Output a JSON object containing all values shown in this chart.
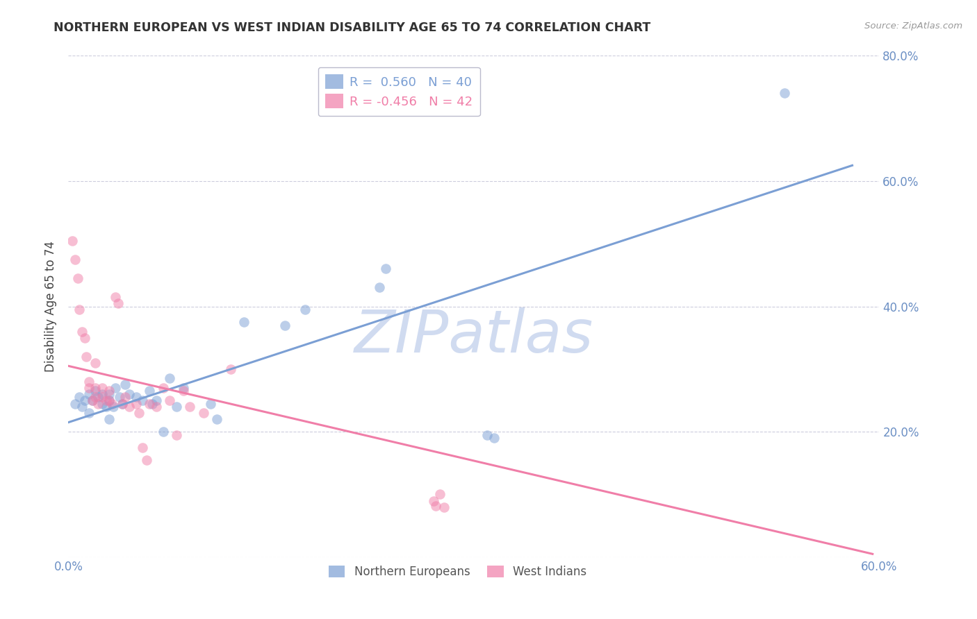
{
  "title": "NORTHERN EUROPEAN VS WEST INDIAN DISABILITY AGE 65 TO 74 CORRELATION CHART",
  "source": "Source: ZipAtlas.com",
  "ylabel": "Disability Age 65 to 74",
  "xlim": [
    0.0,
    0.6
  ],
  "ylim": [
    0.0,
    0.8
  ],
  "xticks": [
    0.0,
    0.6
  ],
  "yticks": [
    0.0,
    0.2,
    0.4,
    0.6,
    0.8
  ],
  "xticklabels": [
    "0.0%",
    "60.0%"
  ],
  "yticklabels": [
    "",
    "20.0%",
    "40.0%",
    "60.0%",
    "80.0%"
  ],
  "legend_entries": [
    {
      "label": "Northern Europeans",
      "R": "0.560",
      "N": "40",
      "color": "#7B9FD4"
    },
    {
      "label": "West Indians",
      "R": "-0.456",
      "N": "42",
      "color": "#F07EA8"
    }
  ],
  "watermark": "ZIPatlas",
  "blue_color": "#7B9FD4",
  "pink_color": "#F07EA8",
  "axis_color": "#6B8FC4",
  "grid_color": "#CCCCDD",
  "title_color": "#333333",
  "blue_scatter": [
    [
      0.005,
      0.245
    ],
    [
      0.008,
      0.255
    ],
    [
      0.01,
      0.24
    ],
    [
      0.012,
      0.25
    ],
    [
      0.015,
      0.26
    ],
    [
      0.015,
      0.23
    ],
    [
      0.018,
      0.25
    ],
    [
      0.02,
      0.265
    ],
    [
      0.022,
      0.255
    ],
    [
      0.025,
      0.245
    ],
    [
      0.025,
      0.26
    ],
    [
      0.028,
      0.24
    ],
    [
      0.03,
      0.26
    ],
    [
      0.03,
      0.25
    ],
    [
      0.03,
      0.22
    ],
    [
      0.033,
      0.24
    ],
    [
      0.035,
      0.27
    ],
    [
      0.038,
      0.255
    ],
    [
      0.04,
      0.245
    ],
    [
      0.042,
      0.275
    ],
    [
      0.045,
      0.26
    ],
    [
      0.05,
      0.255
    ],
    [
      0.055,
      0.25
    ],
    [
      0.06,
      0.265
    ],
    [
      0.062,
      0.245
    ],
    [
      0.065,
      0.25
    ],
    [
      0.07,
      0.2
    ],
    [
      0.075,
      0.285
    ],
    [
      0.08,
      0.24
    ],
    [
      0.085,
      0.27
    ],
    [
      0.105,
      0.245
    ],
    [
      0.11,
      0.22
    ],
    [
      0.13,
      0.375
    ],
    [
      0.16,
      0.37
    ],
    [
      0.175,
      0.395
    ],
    [
      0.23,
      0.43
    ],
    [
      0.235,
      0.46
    ],
    [
      0.31,
      0.195
    ],
    [
      0.315,
      0.19
    ],
    [
      0.53,
      0.74
    ]
  ],
  "pink_scatter": [
    [
      0.003,
      0.505
    ],
    [
      0.005,
      0.475
    ],
    [
      0.007,
      0.445
    ],
    [
      0.008,
      0.395
    ],
    [
      0.01,
      0.36
    ],
    [
      0.012,
      0.35
    ],
    [
      0.013,
      0.32
    ],
    [
      0.015,
      0.28
    ],
    [
      0.015,
      0.27
    ],
    [
      0.018,
      0.25
    ],
    [
      0.02,
      0.31
    ],
    [
      0.02,
      0.27
    ],
    [
      0.02,
      0.255
    ],
    [
      0.022,
      0.245
    ],
    [
      0.025,
      0.27
    ],
    [
      0.025,
      0.255
    ],
    [
      0.028,
      0.25
    ],
    [
      0.03,
      0.265
    ],
    [
      0.03,
      0.25
    ],
    [
      0.032,
      0.245
    ],
    [
      0.035,
      0.415
    ],
    [
      0.037,
      0.405
    ],
    [
      0.04,
      0.245
    ],
    [
      0.042,
      0.255
    ],
    [
      0.045,
      0.24
    ],
    [
      0.05,
      0.245
    ],
    [
      0.052,
      0.23
    ],
    [
      0.055,
      0.175
    ],
    [
      0.058,
      0.155
    ],
    [
      0.06,
      0.245
    ],
    [
      0.065,
      0.24
    ],
    [
      0.07,
      0.27
    ],
    [
      0.075,
      0.25
    ],
    [
      0.08,
      0.195
    ],
    [
      0.085,
      0.265
    ],
    [
      0.09,
      0.24
    ],
    [
      0.1,
      0.23
    ],
    [
      0.12,
      0.3
    ],
    [
      0.27,
      0.09
    ],
    [
      0.272,
      0.082
    ],
    [
      0.275,
      0.1
    ],
    [
      0.278,
      0.08
    ]
  ],
  "blue_line": [
    [
      0.0,
      0.215
    ],
    [
      0.58,
      0.625
    ]
  ],
  "pink_line": [
    [
      0.0,
      0.305
    ],
    [
      0.595,
      0.005
    ]
  ],
  "marker_size": 110,
  "marker_alpha": 0.5,
  "line_width": 2.2
}
